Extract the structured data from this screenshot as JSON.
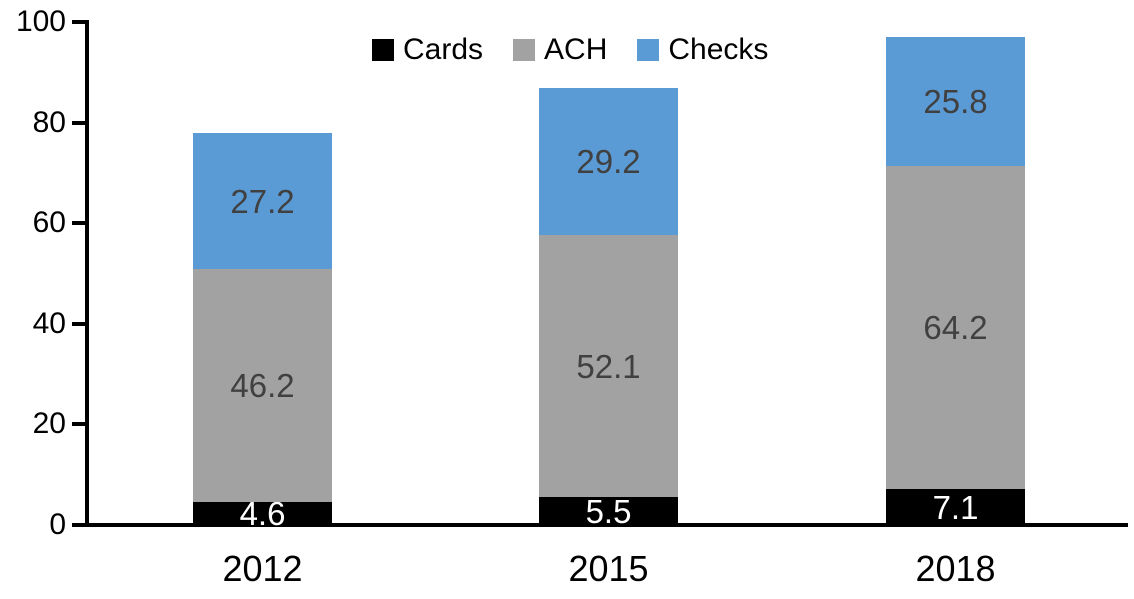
{
  "chart_data": {
    "type": "bar",
    "stacked": true,
    "title": "",
    "xlabel": "",
    "ylabel": "",
    "categories": [
      "2012",
      "2015",
      "2018"
    ],
    "series": [
      {
        "name": "Cards",
        "color": "#000000",
        "label_color": "#ffffff",
        "values": [
          4.6,
          5.5,
          7.1
        ]
      },
      {
        "name": "ACH",
        "color": "#a2a2a2",
        "label_color": "#404040",
        "values": [
          46.2,
          52.1,
          64.2
        ]
      },
      {
        "name": "Checks",
        "color": "#5b9bd5",
        "label_color": "#404040",
        "values": [
          27.2,
          29.2,
          25.8
        ]
      }
    ],
    "totals": [
      78.0,
      86.8,
      97.1
    ],
    "ylim": [
      0,
      100
    ],
    "yticks": [
      "0",
      "20",
      "40",
      "60",
      "80",
      "100"
    ],
    "grid": false,
    "data_labels": true,
    "legend_position": "top-center",
    "axis_color": "#000000"
  }
}
